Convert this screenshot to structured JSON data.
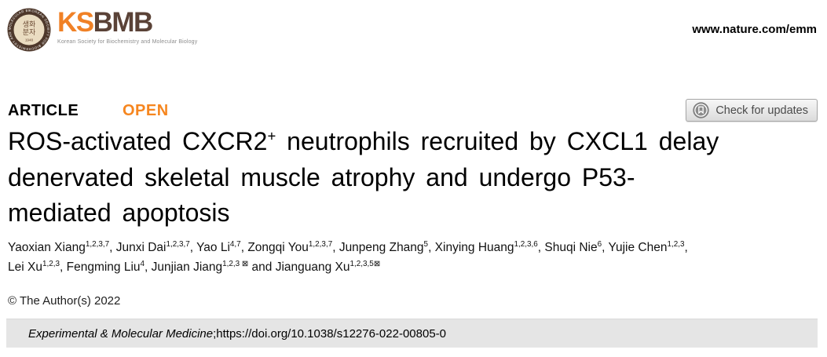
{
  "header": {
    "logo": {
      "acronym_ks": "KS",
      "acronym_bmb": "BMB",
      "subtitle": "Korean Society for Biochemistry and Molecular Biology",
      "seal": {
        "ring_text": "KOREAN SOCIETY FOR BIOCHEMISTRY AND MOLECULAR BIOLOGY",
        "center_line1": "생화",
        "center_line2": "분자",
        "year": "1948"
      },
      "colors": {
        "orange": "#F08126",
        "brown": "#5A4237"
      }
    },
    "site_url": "www.nature.com/emm"
  },
  "article_bar": {
    "label": "ARTICLE",
    "open_label": "OPEN",
    "check_updates_label": "Check for updates"
  },
  "title": {
    "lines": [
      [
        {
          "t": "ROS-activated CXCR2"
        },
        {
          "t": "+",
          "sup": true
        },
        {
          "t": " neutrophils recruited by CXCL1 delay"
        }
      ],
      [
        {
          "t": "denervated skeletal muscle atrophy and undergo P53-"
        }
      ],
      [
        {
          "t": "mediated apoptosis"
        }
      ]
    ]
  },
  "authors": {
    "lines": [
      [
        {
          "t": "Yaoxian Xiang"
        },
        {
          "t": "1,2,3,7",
          "sup": true
        },
        {
          "t": ", Junxi Dai"
        },
        {
          "t": "1,2,3,7",
          "sup": true
        },
        {
          "t": ", Yao Li"
        },
        {
          "t": "4,7",
          "sup": true
        },
        {
          "t": ", Zongqi You"
        },
        {
          "t": "1,2,3,7",
          "sup": true
        },
        {
          "t": ", Junpeng Zhang"
        },
        {
          "t": "5",
          "sup": true
        },
        {
          "t": ", Xinying Huang"
        },
        {
          "t": "1,2,3,6",
          "sup": true
        },
        {
          "t": ", Shuqi Nie"
        },
        {
          "t": "6",
          "sup": true
        },
        {
          "t": ", Yujie Chen"
        },
        {
          "t": "1,2,3",
          "sup": true
        },
        {
          "t": ","
        }
      ],
      [
        {
          "t": "Lei Xu"
        },
        {
          "t": "1,2,3",
          "sup": true
        },
        {
          "t": ", Fengming Liu"
        },
        {
          "t": "4",
          "sup": true
        },
        {
          "t": ", Junjian Jiang"
        },
        {
          "t": "1,2,3 ⊠",
          "sup": true
        },
        {
          "t": " and Jianguang Xu"
        },
        {
          "t": "1,2,3,5",
          "sup": true
        },
        {
          "t": "⊠",
          "sup": true
        }
      ]
    ]
  },
  "copyright": "© The Author(s) 2022",
  "citation": {
    "journal": "Experimental & Molecular Medicine",
    "separator": "; ",
    "doi": "https://doi.org/10.1038/s12276-022-00805-0"
  }
}
